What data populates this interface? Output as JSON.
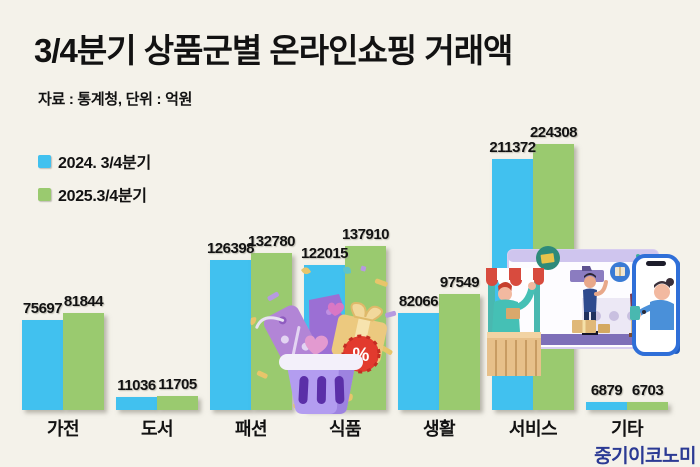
{
  "page": {
    "background": "#f4f2ea"
  },
  "header": {
    "title": "3/4분기 상품군별 온라인쇼핑 거래액",
    "source_note": "자료 : 통계청, 단위 : 억원"
  },
  "legend": [
    {
      "label": "2024. 3/4분기",
      "color": "#41c1ef"
    },
    {
      "label": "2025.3/4분기",
      "color": "#9aca6f"
    }
  ],
  "watermark": "중기이코노미",
  "illustrations": {
    "basket": "shopping-basket-with-discount-tags",
    "scene": "online-shopping-store-and-smartphone",
    "badge_text": "%"
  },
  "chart_data": {
    "type": "bar",
    "title": "3/4분기 상품군별 온라인쇼핑 거래액",
    "source": "통계청",
    "unit": "억원",
    "categories": [
      "가전",
      "도서",
      "패션",
      "식품",
      "생활",
      "서비스",
      "기타"
    ],
    "series": [
      {
        "name": "2024. 3/4분기",
        "color": "#41c1ef",
        "values": [
          75697,
          11036,
          126398,
          122015,
          82066,
          211372,
          6879
        ]
      },
      {
        "name": "2025.3/4분기",
        "color": "#9aca6f",
        "values": [
          81844,
          11705,
          132780,
          137910,
          97549,
          224308,
          6703
        ]
      }
    ],
    "ylim": [
      0,
      230000
    ],
    "grid": false,
    "value_labels": true,
    "legend_position": "top-left"
  }
}
